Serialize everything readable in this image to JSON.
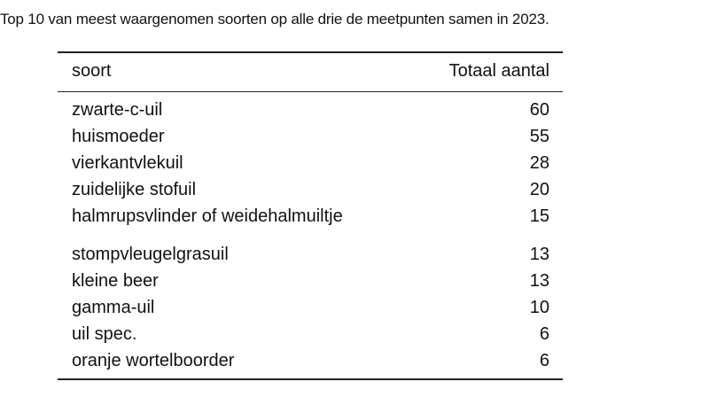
{
  "caption": "Top 10 van meest waargenomen soorten op alle drie de meetpunten samen in 2023.",
  "table": {
    "headers": [
      "soort",
      "Totaal aantal"
    ],
    "rows": [
      {
        "soort": "zwarte-c-uil",
        "aantal": "60"
      },
      {
        "soort": "huismoeder",
        "aantal": "55"
      },
      {
        "soort": "vierkantvlekuil",
        "aantal": "28"
      },
      {
        "soort": "zuidelijke stofuil",
        "aantal": "20"
      },
      {
        "soort": "halmrupsvlinder of weidehalmuiltje",
        "aantal": "15"
      },
      {
        "soort": "stompvleugelgrasuil",
        "aantal": "13"
      },
      {
        "soort": "kleine beer",
        "aantal": "13"
      },
      {
        "soort": "gamma-uil",
        "aantal": "10"
      },
      {
        "soort": "uil spec.",
        "aantal": "6"
      },
      {
        "soort": "oranje wortelboorder",
        "aantal": "6"
      }
    ]
  }
}
